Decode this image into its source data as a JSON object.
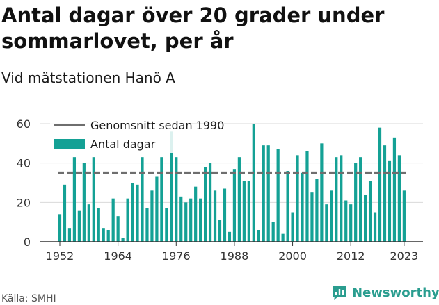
{
  "header": {
    "title": "Antal dagar över 20 grader under sommarlovet, per år",
    "subtitle": "Vid mätstationen Hanö A"
  },
  "footer": {
    "source": "Källa: SMHI",
    "brand": "Newsworthy"
  },
  "colors": {
    "bar": "#14a195",
    "average_line": "#6e6e6e",
    "grid": "#d9d9d9",
    "axis": "#333333"
  },
  "icons": {
    "brand_logo": "newsworthy-logo-icon"
  },
  "chart_data": {
    "type": "bar",
    "title": "Antal dagar över 20 grader under sommarlovet, per år",
    "subtitle": "Vid mätstationen Hanö A",
    "xlabel": "",
    "ylabel": "",
    "ylim": [
      0,
      60
    ],
    "yticks": [
      "0",
      "20",
      "40",
      "60"
    ],
    "xticks": [
      "1952",
      "1964",
      "1976",
      "1988",
      "2000",
      "2012",
      "2023"
    ],
    "legend_position": "top-left",
    "grid": true,
    "categories": [
      1952,
      1953,
      1954,
      1955,
      1956,
      1957,
      1958,
      1959,
      1960,
      1961,
      1962,
      1963,
      1964,
      1965,
      1966,
      1967,
      1968,
      1969,
      1970,
      1971,
      1972,
      1973,
      1974,
      1975,
      1976,
      1977,
      1978,
      1979,
      1980,
      1981,
      1982,
      1983,
      1984,
      1985,
      1986,
      1987,
      1988,
      1989,
      1990,
      1991,
      1992,
      1993,
      1994,
      1995,
      1996,
      1997,
      1998,
      1999,
      2000,
      2001,
      2002,
      2003,
      2004,
      2005,
      2006,
      2007,
      2008,
      2009,
      2010,
      2011,
      2012,
      2013,
      2014,
      2015,
      2016,
      2017,
      2018,
      2019,
      2020,
      2021,
      2022,
      2023
    ],
    "series": [
      {
        "name": "Antal dagar",
        "values": [
          14,
          29,
          7,
          43,
          16,
          40,
          19,
          43,
          17,
          7,
          6,
          22,
          13,
          2,
          22,
          30,
          29,
          43,
          17,
          26,
          33,
          43,
          17,
          56,
          43,
          23,
          20,
          22,
          28,
          22,
          38,
          40,
          26,
          11,
          27,
          5,
          37,
          43,
          31,
          31,
          60,
          6,
          49,
          49,
          10,
          47,
          4,
          36,
          15,
          44,
          35,
          46,
          25,
          32,
          50,
          19,
          26,
          43,
          44,
          21,
          19,
          40,
          43,
          24,
          31,
          15,
          58,
          49,
          41,
          53,
          44,
          26
        ]
      }
    ],
    "reference_lines": [
      {
        "name": "Genomsnitt sedan 1990",
        "value": 35
      }
    ]
  }
}
